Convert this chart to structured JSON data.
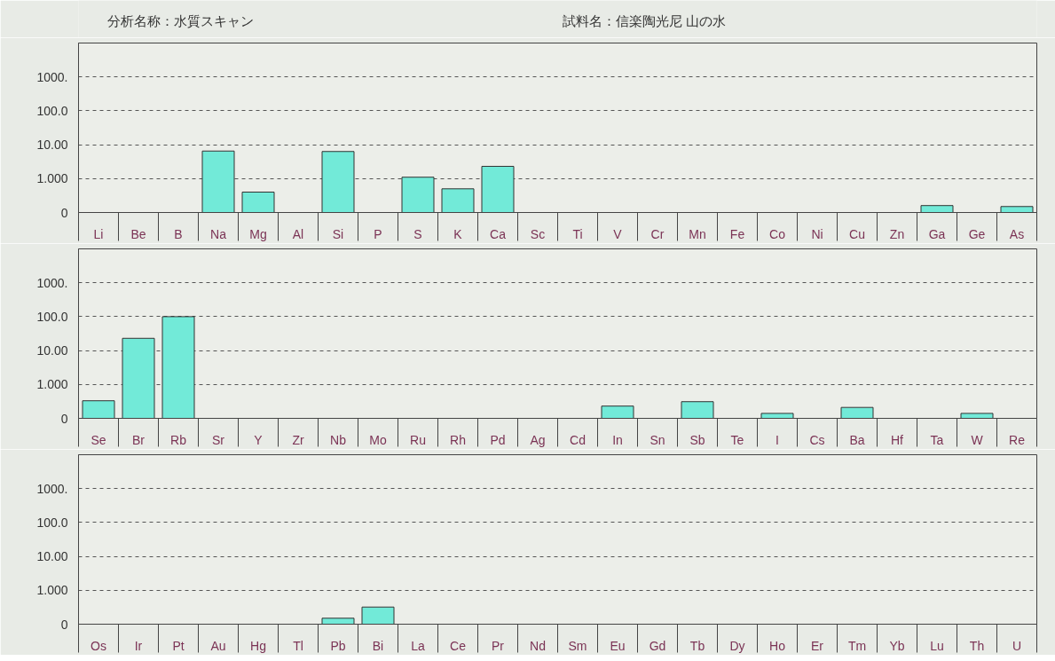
{
  "chart_data": [
    {
      "type": "bar",
      "annotations": [
        "分析名称：水質スキャン",
        "試料名：信楽陶光尼 山の水"
      ],
      "categories": [
        "Li",
        "Be",
        "B",
        "Na",
        "Mg",
        "Al",
        "Si",
        "P",
        "S",
        "K",
        "Ca",
        "Sc",
        "Ti",
        "V",
        "Cr",
        "Mn",
        "Fe",
        "Co",
        "Ni",
        "Cu",
        "Zn",
        "Ga",
        "Ge",
        "As"
      ],
      "values": [
        null,
        null,
        null,
        6.5,
        0.4,
        null,
        6.3,
        null,
        1.1,
        0.5,
        2.3,
        null,
        null,
        null,
        null,
        null,
        null,
        null,
        null,
        null,
        null,
        0.16,
        null,
        0.15
      ],
      "color": "#72ead8",
      "log": true,
      "ylim": [
        0.1,
        10000
      ],
      "yticks": [
        {
          "value": 0.1,
          "label": "0"
        },
        {
          "value": 1,
          "label": "1.000"
        },
        {
          "value": 10,
          "label": "10.00"
        },
        {
          "value": 100,
          "label": "100.0"
        },
        {
          "value": 1000,
          "label": "1000."
        }
      ],
      "grid": "y"
    },
    {
      "type": "bar",
      "categories": [
        "Se",
        "Br",
        "Rb",
        "Sr",
        "Y",
        "Zr",
        "Nb",
        "Mo",
        "Ru",
        "Rh",
        "Pd",
        "Ag",
        "Cd",
        "In",
        "Sn",
        "Sb",
        "Te",
        "I",
        "Cs",
        "Ba",
        "Hf",
        "Ta",
        "W",
        "Re"
      ],
      "values": [
        0.33,
        23,
        100,
        null,
        null,
        null,
        null,
        null,
        null,
        null,
        null,
        null,
        null,
        0.23,
        null,
        0.31,
        null,
        0.14,
        null,
        0.21,
        null,
        null,
        0.14,
        null
      ],
      "color": "#72ead8",
      "log": true,
      "ylim": [
        0.1,
        10000
      ],
      "yticks": [
        {
          "value": 0.1,
          "label": "0"
        },
        {
          "value": 1,
          "label": "1.000"
        },
        {
          "value": 10,
          "label": "10.00"
        },
        {
          "value": 100,
          "label": "100.0"
        },
        {
          "value": 1000,
          "label": "1000."
        }
      ],
      "grid": "y"
    },
    {
      "type": "bar",
      "categories": [
        "Os",
        "Ir",
        "Pt",
        "Au",
        "Hg",
        "Tl",
        "Pb",
        "Bi",
        "La",
        "Ce",
        "Pr",
        "Nd",
        "Sm",
        "Eu",
        "Gd",
        "Tb",
        "Dy",
        "Ho",
        "Er",
        "Tm",
        "Yb",
        "Lu",
        "Th",
        "U"
      ],
      "values": [
        null,
        null,
        null,
        null,
        null,
        null,
        0.15,
        0.32,
        null,
        null,
        null,
        null,
        null,
        null,
        null,
        null,
        null,
        null,
        null,
        null,
        null,
        null,
        null,
        null
      ],
      "color": "#72ead8",
      "log": true,
      "ylim": [
        0.1,
        10000
      ],
      "yticks": [
        {
          "value": 0.1,
          "label": "0"
        },
        {
          "value": 1,
          "label": "1.000"
        },
        {
          "value": 10,
          "label": "10.00"
        },
        {
          "value": 100,
          "label": "100.0"
        },
        {
          "value": 1000,
          "label": "1000."
        }
      ],
      "grid": "y"
    }
  ]
}
